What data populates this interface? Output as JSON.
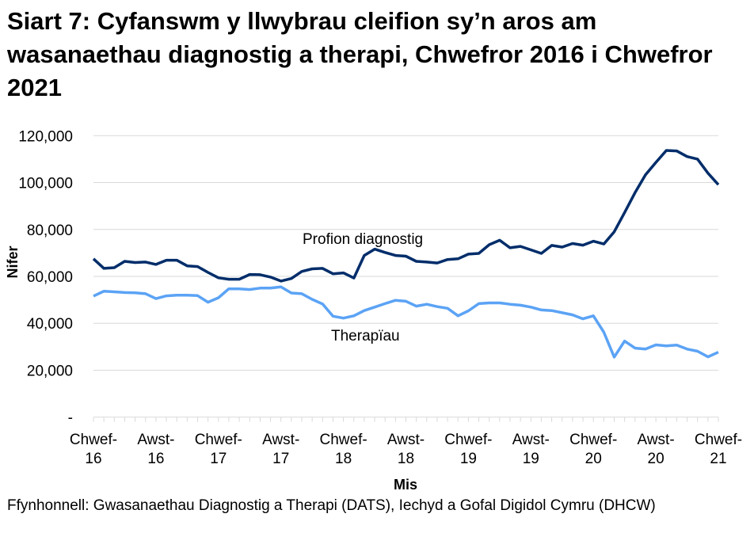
{
  "title": "Siart 7: Cyfanswm y llwybrau cleifion sy’n aros am wasanaethau diagnostig a therapi, Chwefror 2016 i Chwefror 2021",
  "source": "Ffynhonnell: Gwasanaethau Diagnostig a Therapi (DATS), Iechyd a Gofal Digidol Cymru (DHCW)",
  "chart_data": {
    "type": "line",
    "title": "Siart 7: Cyfanswm y llwybrau cleifion sy’n aros am wasanaethau diagnostig a therapi, Chwefror 2016 i Chwefror 2021",
    "xlabel": "Mis",
    "ylabel": "Nifer",
    "ylim": [
      0,
      120000
    ],
    "yticks": [
      0,
      20000,
      40000,
      60000,
      80000,
      100000,
      120000
    ],
    "ytick_labels": [
      "-",
      "20,000",
      "40,000",
      "60,000",
      "80,000",
      "100,000",
      "120,000"
    ],
    "x_start": "2016-02",
    "x_end": "2021-02",
    "xtick_labels": [
      [
        "Chwef-",
        "16"
      ],
      [
        "Awst-",
        "16"
      ],
      [
        "Chwef-",
        "17"
      ],
      [
        "Awst-",
        "17"
      ],
      [
        "Chwef-",
        "18"
      ],
      [
        "Awst-",
        "18"
      ],
      [
        "Chwef-",
        "19"
      ],
      [
        "Awst-",
        "19"
      ],
      [
        "Chwef-",
        "20"
      ],
      [
        "Awst-",
        "20"
      ],
      [
        "Chwef-",
        "21"
      ]
    ],
    "grid": true,
    "legend": "inline labels",
    "series": [
      {
        "name": "Profion diagnostig",
        "color": "#002D6A",
        "values": [
          67500,
          63400,
          63700,
          66400,
          65900,
          66100,
          65100,
          66900,
          66900,
          64500,
          64200,
          61700,
          59400,
          58800,
          58800,
          60800,
          60700,
          59700,
          58000,
          59100,
          62100,
          63200,
          63400,
          61100,
          61500,
          59300,
          68900,
          71600,
          70200,
          68900,
          68600,
          66400,
          66100,
          65700,
          67200,
          67500,
          69500,
          69800,
          73500,
          75400,
          72200,
          72800,
          71300,
          69800,
          73200,
          72500,
          74000,
          73300,
          75000,
          73800,
          79000,
          87200,
          95700,
          103300,
          108600,
          113700,
          113500,
          111100,
          110000,
          104000,
          99100
        ]
      },
      {
        "name": "Therapïau",
        "color": "#5BA3F5",
        "values": [
          51600,
          53700,
          53400,
          53100,
          53000,
          52600,
          50500,
          51700,
          52000,
          52000,
          51800,
          49000,
          50900,
          54700,
          54700,
          54400,
          55000,
          55000,
          55500,
          52900,
          52600,
          50200,
          48200,
          43000,
          42200,
          43200,
          45400,
          46900,
          48400,
          49800,
          49400,
          47300,
          48100,
          47100,
          46400,
          43200,
          45300,
          48400,
          48700,
          48700,
          48100,
          47700,
          46900,
          45700,
          45400,
          44500,
          43600,
          41900,
          43200,
          36200,
          25600,
          32400,
          29400,
          29000,
          30800,
          30400,
          30700,
          29000,
          28100,
          25700,
          27700
        ]
      }
    ]
  }
}
